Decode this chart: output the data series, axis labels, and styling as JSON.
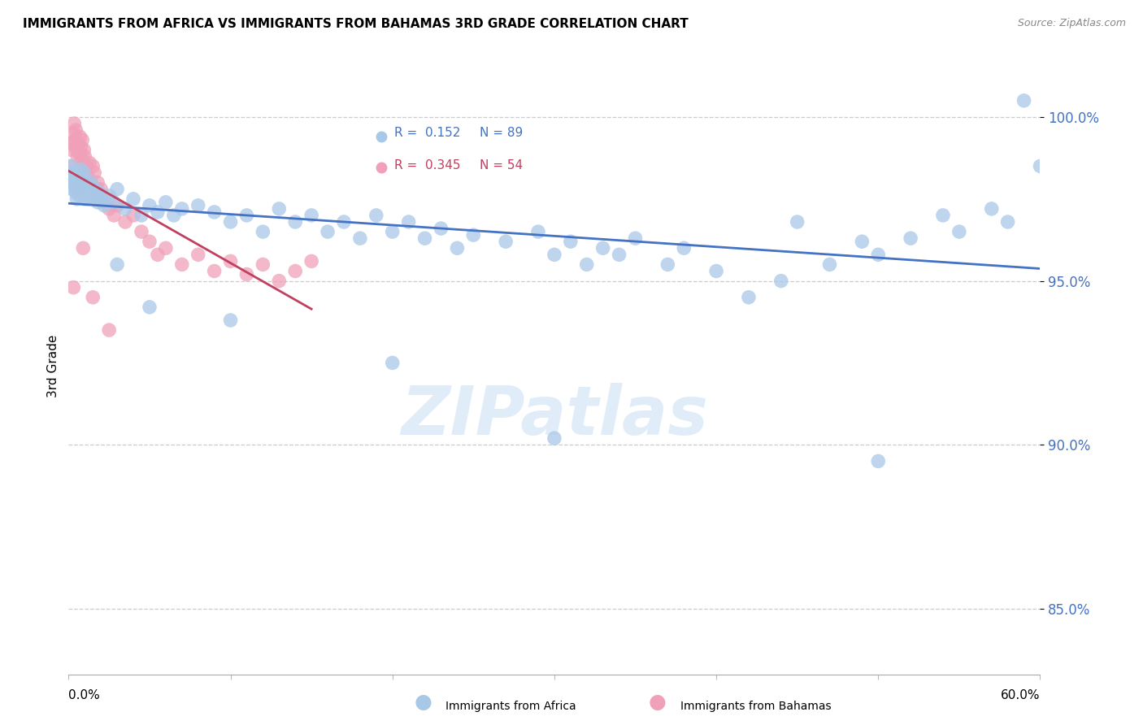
{
  "title": "IMMIGRANTS FROM AFRICA VS IMMIGRANTS FROM BAHAMAS 3RD GRADE CORRELATION CHART",
  "source": "Source: ZipAtlas.com",
  "ylabel": "3rd Grade",
  "yticks": [
    85.0,
    90.0,
    95.0,
    100.0
  ],
  "ytick_labels": [
    "85.0%",
    "90.0%",
    "95.0%",
    "100.0%"
  ],
  "xlim": [
    0.0,
    60.0
  ],
  "ylim": [
    83.0,
    101.8
  ],
  "africa_color": "#a8c8e8",
  "bahamas_color": "#f0a0b8",
  "africa_line_color": "#4472c4",
  "bahamas_line_color": "#c04060",
  "R_africa": 0.152,
  "N_africa": 89,
  "R_bahamas": 0.345,
  "N_bahamas": 54,
  "legend_box_facecolor": "#e8f0fc",
  "africa_x": [
    0.1,
    0.15,
    0.2,
    0.25,
    0.3,
    0.35,
    0.4,
    0.45,
    0.5,
    0.55,
    0.6,
    0.65,
    0.7,
    0.75,
    0.8,
    0.85,
    0.9,
    0.95,
    1.0,
    1.1,
    1.2,
    1.3,
    1.4,
    1.5,
    1.6,
    1.7,
    1.8,
    1.9,
    2.0,
    2.2,
    2.5,
    2.8,
    3.0,
    3.5,
    4.0,
    4.5,
    5.0,
    5.5,
    6.0,
    6.5,
    7.0,
    8.0,
    9.0,
    10.0,
    11.0,
    12.0,
    13.0,
    14.0,
    15.0,
    16.0,
    17.0,
    18.0,
    19.0,
    20.0,
    21.0,
    22.0,
    23.0,
    24.0,
    25.0,
    27.0,
    29.0,
    30.0,
    31.0,
    32.0,
    33.0,
    34.0,
    35.0,
    37.0,
    38.0,
    40.0,
    42.0,
    44.0,
    45.0,
    47.0,
    49.0,
    50.0,
    52.0,
    54.0,
    55.0,
    57.0,
    58.0,
    59.0,
    60.0,
    50.0,
    30.0,
    20.0,
    10.0,
    5.0,
    3.0
  ],
  "africa_y": [
    98.2,
    98.5,
    97.8,
    98.0,
    98.3,
    97.9,
    98.1,
    97.7,
    97.5,
    98.0,
    98.2,
    97.6,
    98.0,
    98.4,
    97.8,
    98.1,
    97.9,
    98.3,
    97.5,
    97.8,
    97.6,
    97.9,
    98.0,
    97.5,
    97.8,
    97.6,
    97.4,
    97.7,
    97.5,
    97.3,
    97.6,
    97.4,
    97.8,
    97.2,
    97.5,
    97.0,
    97.3,
    97.1,
    97.4,
    97.0,
    97.2,
    97.3,
    97.1,
    96.8,
    97.0,
    96.5,
    97.2,
    96.8,
    97.0,
    96.5,
    96.8,
    96.3,
    97.0,
    96.5,
    96.8,
    96.3,
    96.6,
    96.0,
    96.4,
    96.2,
    96.5,
    95.8,
    96.2,
    95.5,
    96.0,
    95.8,
    96.3,
    95.5,
    96.0,
    95.3,
    94.5,
    95.0,
    96.8,
    95.5,
    96.2,
    95.8,
    96.3,
    97.0,
    96.5,
    97.2,
    96.8,
    100.5,
    98.5,
    89.5,
    90.2,
    92.5,
    93.8,
    94.2,
    95.5
  ],
  "bahamas_x": [
    0.1,
    0.15,
    0.2,
    0.3,
    0.35,
    0.4,
    0.45,
    0.5,
    0.55,
    0.6,
    0.65,
    0.7,
    0.75,
    0.8,
    0.85,
    0.9,
    0.95,
    1.0,
    1.1,
    1.2,
    1.3,
    1.4,
    1.5,
    1.6,
    1.7,
    1.8,
    1.9,
    2.0,
    2.2,
    2.5,
    2.8,
    3.0,
    3.5,
    4.0,
    4.5,
    5.0,
    5.5,
    6.0,
    7.0,
    8.0,
    9.0,
    10.0,
    11.0,
    12.0,
    13.0,
    14.0,
    15.0,
    1.2,
    0.8,
    0.6,
    0.3,
    0.9,
    1.5,
    2.5
  ],
  "bahamas_y": [
    98.5,
    99.0,
    99.2,
    99.5,
    99.8,
    99.3,
    99.6,
    99.0,
    98.8,
    99.2,
    98.9,
    99.4,
    99.1,
    98.7,
    99.3,
    98.5,
    99.0,
    98.8,
    98.5,
    98.2,
    98.6,
    98.0,
    98.5,
    98.3,
    97.8,
    98.0,
    97.5,
    97.8,
    97.5,
    97.2,
    97.0,
    97.3,
    96.8,
    97.0,
    96.5,
    96.2,
    95.8,
    96.0,
    95.5,
    95.8,
    95.3,
    95.6,
    95.2,
    95.5,
    95.0,
    95.3,
    95.6,
    97.5,
    98.0,
    97.8,
    94.8,
    96.0,
    94.5,
    93.5
  ]
}
